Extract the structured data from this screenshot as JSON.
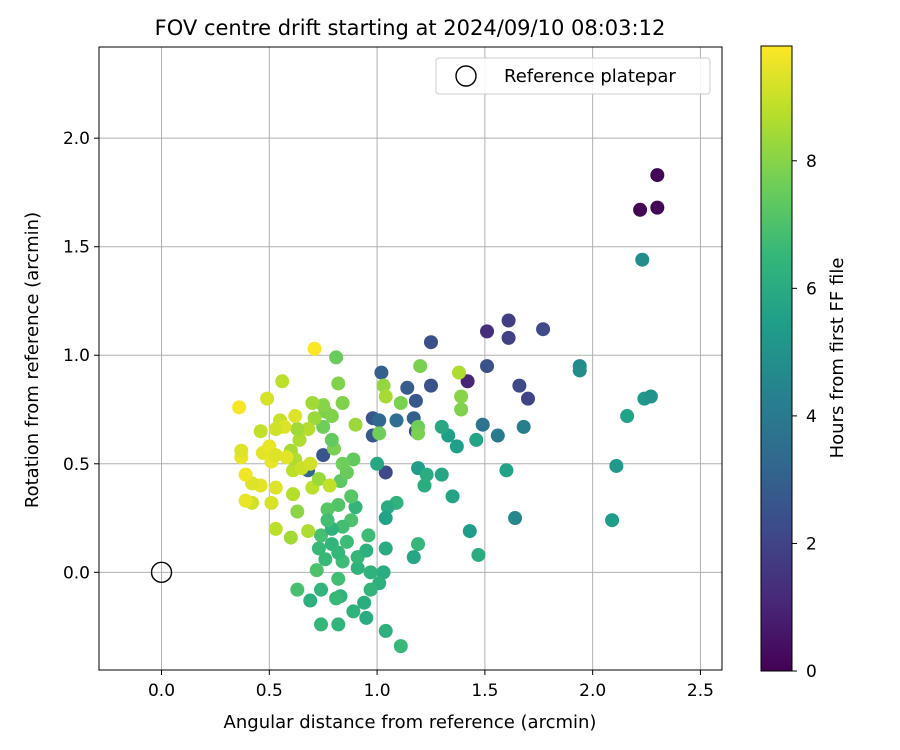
{
  "chart_data": {
    "type": "scatter",
    "title": "FOV centre drift starting at 2024/09/10 08:03:12",
    "xlabel": "Angular distance from reference (arcmin)",
    "ylabel": "Rotation from reference (arcmin)",
    "xlim": [
      -0.29,
      2.6
    ],
    "ylim": [
      -0.45,
      2.42
    ],
    "xticks": [
      0.0,
      0.5,
      1.0,
      1.5,
      2.0,
      2.5
    ],
    "xtick_labels": [
      "0.0",
      "0.5",
      "1.0",
      "1.5",
      "2.0",
      "2.5"
    ],
    "yticks": [
      0.0,
      0.5,
      1.0,
      1.5,
      2.0
    ],
    "ytick_labels": [
      "0.0",
      "0.5",
      "1.0",
      "1.5",
      "2.0"
    ],
    "grid": true,
    "legend": {
      "position": "upper right",
      "entries": [
        "Reference platepar"
      ]
    },
    "reference_point": {
      "x": 0.0,
      "y": 0.0,
      "marker": "open-circle",
      "label": "Reference platepar"
    },
    "colorbar": {
      "label": "Hours from first FF file",
      "colormap": "viridis",
      "range": [
        0,
        9.8
      ],
      "ticks": [
        0,
        2,
        4,
        6,
        8
      ],
      "tick_labels": [
        "0",
        "2",
        "4",
        "6",
        "8"
      ]
    },
    "colormap_stops": [
      "#440154",
      "#482878",
      "#3e4989",
      "#31688e",
      "#26828e",
      "#1f9e89",
      "#35b779",
      "#6ece58",
      "#b5de2b",
      "#fde725"
    ],
    "points": [
      {
        "x": 2.3,
        "y": 1.83,
        "c": 0.1
      },
      {
        "x": 2.22,
        "y": 1.67,
        "c": 0.1
      },
      {
        "x": 2.3,
        "y": 1.68,
        "c": 0.1
      },
      {
        "x": 1.51,
        "y": 1.11,
        "c": 1.3
      },
      {
        "x": 1.61,
        "y": 1.16,
        "c": 1.8
      },
      {
        "x": 1.61,
        "y": 1.08,
        "c": 1.9
      },
      {
        "x": 1.77,
        "y": 1.12,
        "c": 2.2
      },
      {
        "x": 1.25,
        "y": 1.06,
        "c": 2.4
      },
      {
        "x": 1.42,
        "y": 0.88,
        "c": 1.0
      },
      {
        "x": 1.51,
        "y": 0.95,
        "c": 2.5
      },
      {
        "x": 1.66,
        "y": 0.86,
        "c": 2.2
      },
      {
        "x": 1.7,
        "y": 0.8,
        "c": 2.0
      },
      {
        "x": 1.25,
        "y": 0.86,
        "c": 2.5
      },
      {
        "x": 1.14,
        "y": 0.85,
        "c": 2.8
      },
      {
        "x": 1.02,
        "y": 0.92,
        "c": 3.0
      },
      {
        "x": 1.18,
        "y": 0.79,
        "c": 2.7
      },
      {
        "x": 0.98,
        "y": 0.71,
        "c": 2.6
      },
      {
        "x": 1.01,
        "y": 0.7,
        "c": 3.3
      },
      {
        "x": 0.98,
        "y": 0.63,
        "c": 2.7
      },
      {
        "x": 1.17,
        "y": 0.71,
        "c": 3.0
      },
      {
        "x": 1.18,
        "y": 0.65,
        "c": 2.3
      },
      {
        "x": 1.09,
        "y": 0.7,
        "c": 3.5
      },
      {
        "x": 1.04,
        "y": 0.46,
        "c": 2.2
      },
      {
        "x": 0.75,
        "y": 0.54,
        "c": 2.6
      },
      {
        "x": 0.68,
        "y": 0.47,
        "c": 3.2
      },
      {
        "x": 1.49,
        "y": 0.68,
        "c": 3.7
      },
      {
        "x": 1.56,
        "y": 0.63,
        "c": 4.0
      },
      {
        "x": 1.68,
        "y": 0.67,
        "c": 4.2
      },
      {
        "x": 1.94,
        "y": 0.95,
        "c": 4.6
      },
      {
        "x": 1.94,
        "y": 0.93,
        "c": 4.8
      },
      {
        "x": 2.23,
        "y": 1.44,
        "c": 4.8
      },
      {
        "x": 2.24,
        "y": 0.8,
        "c": 5.2
      },
      {
        "x": 2.27,
        "y": 0.81,
        "c": 5.0
      },
      {
        "x": 2.16,
        "y": 0.72,
        "c": 5.6
      },
      {
        "x": 2.11,
        "y": 0.49,
        "c": 5.2
      },
      {
        "x": 2.09,
        "y": 0.24,
        "c": 5.4
      },
      {
        "x": 1.64,
        "y": 0.25,
        "c": 4.6
      },
      {
        "x": 1.6,
        "y": 0.47,
        "c": 5.6
      },
      {
        "x": 1.46,
        "y": 0.61,
        "c": 5.7
      },
      {
        "x": 1.37,
        "y": 0.58,
        "c": 5.5
      },
      {
        "x": 1.33,
        "y": 0.63,
        "c": 5.5
      },
      {
        "x": 1.3,
        "y": 0.67,
        "c": 5.9
      },
      {
        "x": 1.3,
        "y": 0.45,
        "c": 5.8
      },
      {
        "x": 1.19,
        "y": 0.48,
        "c": 5.4
      },
      {
        "x": 1.23,
        "y": 0.45,
        "c": 6.0
      },
      {
        "x": 1.22,
        "y": 0.4,
        "c": 6.1
      },
      {
        "x": 1.35,
        "y": 0.35,
        "c": 5.7
      },
      {
        "x": 1.43,
        "y": 0.19,
        "c": 5.4
      },
      {
        "x": 1.47,
        "y": 0.08,
        "c": 6.0
      },
      {
        "x": 1.19,
        "y": 0.13,
        "c": 6.5
      },
      {
        "x": 1.17,
        "y": 0.07,
        "c": 5.8
      },
      {
        "x": 1.09,
        "y": 0.32,
        "c": 6.3
      },
      {
        "x": 1.05,
        "y": 0.3,
        "c": 6.0
      },
      {
        "x": 1.04,
        "y": 0.25,
        "c": 5.6
      },
      {
        "x": 1.0,
        "y": 0.5,
        "c": 5.9
      },
      {
        "x": 1.04,
        "y": 0.11,
        "c": 6.0
      },
      {
        "x": 1.03,
        "y": 0.0,
        "c": 6.0
      },
      {
        "x": 1.01,
        "y": -0.05,
        "c": 6.2
      },
      {
        "x": 0.97,
        "y": 0.0,
        "c": 6.3
      },
      {
        "x": 0.97,
        "y": -0.08,
        "c": 6.4
      },
      {
        "x": 0.94,
        "y": -0.14,
        "c": 6.1
      },
      {
        "x": 0.89,
        "y": -0.18,
        "c": 6.3
      },
      {
        "x": 0.95,
        "y": -0.21,
        "c": 6.0
      },
      {
        "x": 1.04,
        "y": -0.27,
        "c": 6.2
      },
      {
        "x": 1.11,
        "y": -0.34,
        "c": 6.6
      },
      {
        "x": 0.82,
        "y": -0.24,
        "c": 6.4
      },
      {
        "x": 0.74,
        "y": -0.24,
        "c": 6.5
      },
      {
        "x": 0.83,
        "y": -0.11,
        "c": 6.3
      },
      {
        "x": 0.81,
        "y": -0.12,
        "c": 6.6
      },
      {
        "x": 0.82,
        "y": -0.03,
        "c": 6.8
      },
      {
        "x": 0.74,
        "y": -0.08,
        "c": 6.4
      },
      {
        "x": 0.69,
        "y": -0.13,
        "c": 6.2
      },
      {
        "x": 0.63,
        "y": -0.08,
        "c": 6.9
      },
      {
        "x": 0.72,
        "y": 0.01,
        "c": 7.0
      },
      {
        "x": 0.76,
        "y": 0.06,
        "c": 6.6
      },
      {
        "x": 0.79,
        "y": 0.13,
        "c": 6.4
      },
      {
        "x": 0.84,
        "y": 0.05,
        "c": 6.7
      },
      {
        "x": 0.91,
        "y": 0.02,
        "c": 6.3
      },
      {
        "x": 0.91,
        "y": 0.07,
        "c": 6.5
      },
      {
        "x": 0.95,
        "y": 0.1,
        "c": 6.2
      },
      {
        "x": 0.96,
        "y": 0.17,
        "c": 6.7
      },
      {
        "x": 0.9,
        "y": 0.3,
        "c": 6.4
      },
      {
        "x": 0.88,
        "y": 0.24,
        "c": 7.0
      },
      {
        "x": 0.84,
        "y": 0.21,
        "c": 6.8
      },
      {
        "x": 0.82,
        "y": 0.31,
        "c": 7.1
      },
      {
        "x": 0.77,
        "y": 0.29,
        "c": 7.2
      },
      {
        "x": 0.74,
        "y": 0.17,
        "c": 6.9
      },
      {
        "x": 0.73,
        "y": 0.11,
        "c": 6.6
      },
      {
        "x": 0.79,
        "y": 0.2,
        "c": 6.3
      },
      {
        "x": 0.77,
        "y": 0.24,
        "c": 6.8
      },
      {
        "x": 0.82,
        "y": 0.09,
        "c": 6.5
      },
      {
        "x": 0.86,
        "y": 0.14,
        "c": 6.7
      },
      {
        "x": 0.88,
        "y": 0.35,
        "c": 7.2
      },
      {
        "x": 0.83,
        "y": 0.42,
        "c": 7.3
      },
      {
        "x": 0.86,
        "y": 0.46,
        "c": 7.5
      },
      {
        "x": 0.89,
        "y": 0.52,
        "c": 7.4
      },
      {
        "x": 0.84,
        "y": 0.5,
        "c": 7.6
      },
      {
        "x": 0.8,
        "y": 0.57,
        "c": 7.8
      },
      {
        "x": 0.79,
        "y": 0.61,
        "c": 7.4
      },
      {
        "x": 0.75,
        "y": 0.67,
        "c": 7.6
      },
      {
        "x": 0.76,
        "y": 0.74,
        "c": 7.8
      },
      {
        "x": 0.79,
        "y": 0.72,
        "c": 7.9
      },
      {
        "x": 0.75,
        "y": 0.77,
        "c": 8.0
      },
      {
        "x": 0.84,
        "y": 0.78,
        "c": 7.9
      },
      {
        "x": 0.82,
        "y": 0.87,
        "c": 7.9
      },
      {
        "x": 0.81,
        "y": 0.99,
        "c": 7.5
      },
      {
        "x": 1.01,
        "y": 0.64,
        "c": 7.6
      },
      {
        "x": 1.03,
        "y": 0.86,
        "c": 8.2
      },
      {
        "x": 1.04,
        "y": 0.81,
        "c": 8.5
      },
      {
        "x": 1.11,
        "y": 0.78,
        "c": 7.8
      },
      {
        "x": 1.2,
        "y": 0.95,
        "c": 7.8
      },
      {
        "x": 1.19,
        "y": 0.67,
        "c": 7.6
      },
      {
        "x": 1.19,
        "y": 0.64,
        "c": 7.8
      },
      {
        "x": 1.38,
        "y": 0.92,
        "c": 8.6
      },
      {
        "x": 1.39,
        "y": 0.81,
        "c": 8.0
      },
      {
        "x": 1.39,
        "y": 0.75,
        "c": 7.9
      },
      {
        "x": 0.9,
        "y": 0.68,
        "c": 8.3
      },
      {
        "x": 0.7,
        "y": 0.78,
        "c": 8.4
      },
      {
        "x": 0.71,
        "y": 0.71,
        "c": 8.3
      },
      {
        "x": 0.68,
        "y": 0.66,
        "c": 8.7
      },
      {
        "x": 0.64,
        "y": 0.61,
        "c": 8.6
      },
      {
        "x": 0.63,
        "y": 0.66,
        "c": 8.4
      },
      {
        "x": 0.6,
        "y": 0.56,
        "c": 8.5
      },
      {
        "x": 0.61,
        "y": 0.47,
        "c": 8.8
      },
      {
        "x": 0.62,
        "y": 0.52,
        "c": 8.6
      },
      {
        "x": 0.65,
        "y": 0.48,
        "c": 9.0
      },
      {
        "x": 0.69,
        "y": 0.5,
        "c": 9.1
      },
      {
        "x": 0.7,
        "y": 0.39,
        "c": 8.8
      },
      {
        "x": 0.73,
        "y": 0.43,
        "c": 8.3
      },
      {
        "x": 0.78,
        "y": 0.4,
        "c": 8.9
      },
      {
        "x": 0.68,
        "y": 0.19,
        "c": 8.6
      },
      {
        "x": 0.63,
        "y": 0.28,
        "c": 8.1
      },
      {
        "x": 0.6,
        "y": 0.16,
        "c": 8.4
      },
      {
        "x": 0.61,
        "y": 0.36,
        "c": 8.7
      },
      {
        "x": 0.53,
        "y": 0.2,
        "c": 8.8
      },
      {
        "x": 0.56,
        "y": 0.88,
        "c": 8.8
      },
      {
        "x": 0.49,
        "y": 0.8,
        "c": 9.2
      },
      {
        "x": 0.62,
        "y": 0.72,
        "c": 9.3
      },
      {
        "x": 0.55,
        "y": 0.7,
        "c": 9.0
      },
      {
        "x": 0.57,
        "y": 0.67,
        "c": 9.3
      },
      {
        "x": 0.53,
        "y": 0.66,
        "c": 9.1
      },
      {
        "x": 0.46,
        "y": 0.65,
        "c": 8.9
      },
      {
        "x": 0.47,
        "y": 0.55,
        "c": 9.4
      },
      {
        "x": 0.5,
        "y": 0.58,
        "c": 9.5
      },
      {
        "x": 0.51,
        "y": 0.51,
        "c": 9.5
      },
      {
        "x": 0.53,
        "y": 0.54,
        "c": 9.3
      },
      {
        "x": 0.58,
        "y": 0.53,
        "c": 9.4
      },
      {
        "x": 0.53,
        "y": 0.39,
        "c": 9.3
      },
      {
        "x": 0.51,
        "y": 0.32,
        "c": 9.2
      },
      {
        "x": 0.46,
        "y": 0.4,
        "c": 9.4
      },
      {
        "x": 0.42,
        "y": 0.41,
        "c": 9.3
      },
      {
        "x": 0.39,
        "y": 0.45,
        "c": 9.6
      },
      {
        "x": 0.42,
        "y": 0.32,
        "c": 9.1
      },
      {
        "x": 0.39,
        "y": 0.33,
        "c": 9.5
      },
      {
        "x": 0.37,
        "y": 0.53,
        "c": 9.5
      },
      {
        "x": 0.37,
        "y": 0.56,
        "c": 9.3
      },
      {
        "x": 0.36,
        "y": 0.76,
        "c": 9.7
      },
      {
        "x": 0.71,
        "y": 1.03,
        "c": 9.8
      }
    ]
  }
}
